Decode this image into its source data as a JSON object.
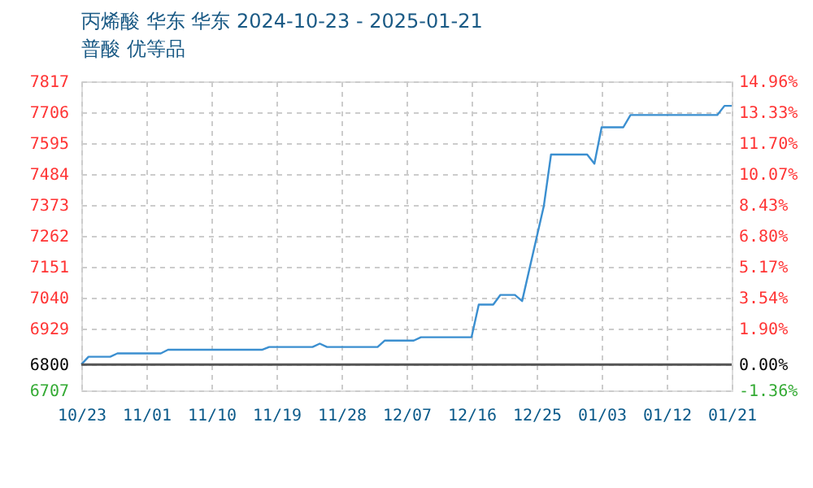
{
  "chart_data": {
    "type": "line",
    "title": "丙烯酸 华东 华东 2024-10-23 - 2025-01-21",
    "subtitle": "普酸 优等品",
    "x": [
      "2024-10-23",
      "2024-10-24",
      "2024-10-27",
      "2024-10-28",
      "2024-11-03",
      "2024-11-04",
      "2024-11-17",
      "2024-11-18",
      "2024-11-24",
      "2024-11-25",
      "2024-11-26",
      "2024-12-03",
      "2024-12-04",
      "2024-12-08",
      "2024-12-09",
      "2024-12-16",
      "2024-12-17",
      "2024-12-19",
      "2024-12-20",
      "2024-12-22",
      "2024-12-23",
      "2024-12-26",
      "2024-12-27",
      "2025-01-01",
      "2025-01-02",
      "2025-01-03",
      "2025-01-06",
      "2025-01-07",
      "2025-01-19",
      "2025-01-20",
      "2025-01-21"
    ],
    "series": [
      {
        "color": "#3b8fd0",
        "values": [
          6800,
          6828,
          6828,
          6840,
          6840,
          6853,
          6853,
          6863,
          6863,
          6875,
          6863,
          6863,
          6886,
          6886,
          6898,
          6898,
          7015,
          7015,
          7050,
          7050,
          7028,
          7369,
          7554,
          7554,
          7521,
          7652,
          7652,
          7696,
          7696,
          7729,
          7729
        ]
      }
    ],
    "xlim": [
      "2024-10-23",
      "2025-01-21"
    ],
    "xticks": [
      {
        "value": "2024-10-23",
        "label": "10/23"
      },
      {
        "value": "2024-11-01",
        "label": "11/01"
      },
      {
        "value": "2024-11-10",
        "label": "11/10"
      },
      {
        "value": "2024-11-19",
        "label": "11/19"
      },
      {
        "value": "2024-11-28",
        "label": "11/28"
      },
      {
        "value": "2024-12-07",
        "label": "12/07"
      },
      {
        "value": "2024-12-16",
        "label": "12/16"
      },
      {
        "value": "2024-12-25",
        "label": "12/25"
      },
      {
        "value": "2025-01-03",
        "label": "01/03"
      },
      {
        "value": "2025-01-12",
        "label": "01/12"
      },
      {
        "value": "2025-01-21",
        "label": "01/21"
      }
    ],
    "ylim": [
      6707,
      7817
    ],
    "yticks": [
      6707,
      6800,
      6929,
      7040,
      7151,
      7262,
      7373,
      7484,
      7595,
      7706,
      7817
    ],
    "y2lim": [
      -1.36,
      14.96
    ],
    "y2ticks": [
      {
        "value": -1.36,
        "label": "-1.36%"
      },
      {
        "value": 0,
        "label": "0.00%"
      },
      {
        "value": 1.9,
        "label": "1.90%"
      },
      {
        "value": 3.54,
        "label": "3.54%"
      },
      {
        "value": 5.17,
        "label": "5.17%"
      },
      {
        "value": 6.8,
        "label": "6.80%"
      },
      {
        "value": 8.43,
        "label": "8.43%"
      },
      {
        "value": 10.07,
        "label": "10.07%"
      },
      {
        "value": 11.7,
        "label": "11.70%"
      },
      {
        "value": 13.33,
        "label": "13.33%"
      },
      {
        "value": 14.96,
        "label": "14.96%"
      }
    ],
    "ref_lines": [
      {
        "axis": "y2",
        "value": 0,
        "color": "#555555"
      }
    ],
    "grid": true,
    "marker": "none",
    "line_style": "solid"
  }
}
